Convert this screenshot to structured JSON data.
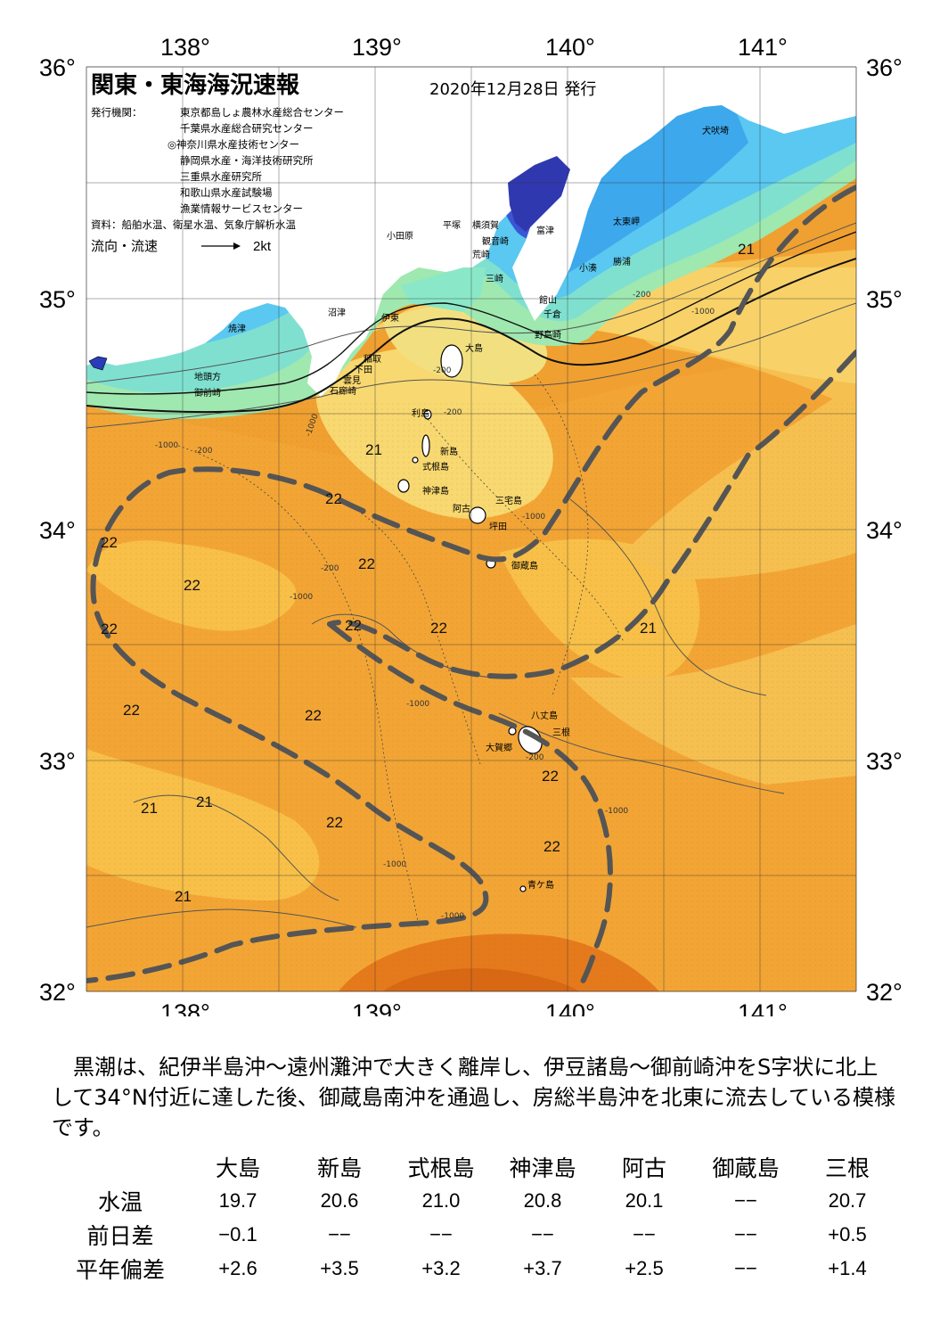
{
  "title": "関東・東海海況速報",
  "issue_date": "2020年12月28日 発行",
  "issuer_label": "発行機関：",
  "issuers": [
    "東京都島しょ農林水産総合センター",
    "千葉県水産総合研究センター",
    "◎神奈川県水産技術センター",
    "静岡県水産・海洋技術研究所",
    "三重県水産研究所",
    "和歌山県水産試験場",
    "漁業情報サービスセンター"
  ],
  "sources": "資料：船舶水温、衛星水温、気象庁解析水温",
  "flow_label": "流向・流速",
  "flow_scale": "2kt",
  "lon_labels": [
    "138°",
    "139°",
    "140°",
    "141°"
  ],
  "lat_labels": [
    "36°",
    "35°",
    "34°",
    "33°",
    "32°"
  ],
  "place_names": {
    "inubozaki": "犬吠埼",
    "taitomisaki": "太東岬",
    "katsuura": "勝浦",
    "kominato": "小湊",
    "tomitsu": "富津",
    "yokosuka": "横須賀",
    "kannonzaki": "観音崎",
    "hiratsuka": "平塚",
    "odawara": "小田原",
    "tategasaki": "荒崎",
    "misaki": "三崎",
    "tateyama": "館山",
    "chikura": "千倉",
    "nojimazaki": "野島崎",
    "numazu": "沼津",
    "ito": "伊東",
    "yaizu": "焼津",
    "inatori": "稲取",
    "shimoda": "下田",
    "kumomi": "雲見",
    "irozaki": "石廊崎",
    "jitokata": "地頭方",
    "omaezaki": "御前崎",
    "oshima": "大島",
    "toshima": "利島",
    "niijima": "新島",
    "shikinejima": "式根島",
    "kozushima": "神津島",
    "miyakejima": "三宅島",
    "ako": "阿古",
    "tsubota": "坪田",
    "mikurajima": "御蔵島",
    "hachijojima": "八丈島",
    "mitsune": "三根",
    "okago": "大賀郷",
    "aogashima": "青ケ島"
  },
  "isotherms": [
    "21",
    "21",
    "22",
    "22",
    "22",
    "22",
    "22",
    "22",
    "22",
    "22",
    "22",
    "22",
    "21",
    "22",
    "22",
    "21",
    "21",
    "21",
    "21"
  ],
  "depth_contours": [
    "-200",
    "-1000",
    "-200",
    "-1000",
    "-200",
    "-1000",
    "-200",
    "-1000",
    "-1000",
    "-1000",
    "-1000",
    "-200",
    "-1000",
    "-1000",
    "-200"
  ],
  "description": "　黒潮は、紀伊半島沖～遠州灘沖で大きく離岸し、伊豆諸島～御前崎沖をS字状に北上して34°N付近に達した後、御蔵島南沖を通過し、房総半島沖を北東に流去している模様です。",
  "table": {
    "stations": [
      "大島",
      "新島",
      "式根島",
      "神津島",
      "阿古",
      "御蔵島",
      "三根"
    ],
    "rows": [
      {
        "label": "水温",
        "values": [
          "19.7",
          "20.6",
          "21.0",
          "20.8",
          "20.1",
          "−−",
          "20.7"
        ]
      },
      {
        "label": "前日差",
        "values": [
          "−0.1",
          "−−",
          "−−",
          "−−",
          "−−",
          "−−",
          "+0.5"
        ]
      },
      {
        "label": "平年偏差",
        "values": [
          "+2.6",
          "+3.5",
          "+3.2",
          "+3.7",
          "+2.5",
          "−−",
          "+1.4"
        ]
      }
    ]
  },
  "colors": {
    "land": "#ffffff",
    "sst_cold": "#2a3db8",
    "sst_cool": "#5ac8f0",
    "sst_mild": "#8ee8c0",
    "sst_warm": "#f5d860",
    "sst_hot": "#f0a030",
    "sst_hottest": "#e07418",
    "kuroshio_axis": "#555555",
    "grid": "#333333"
  }
}
